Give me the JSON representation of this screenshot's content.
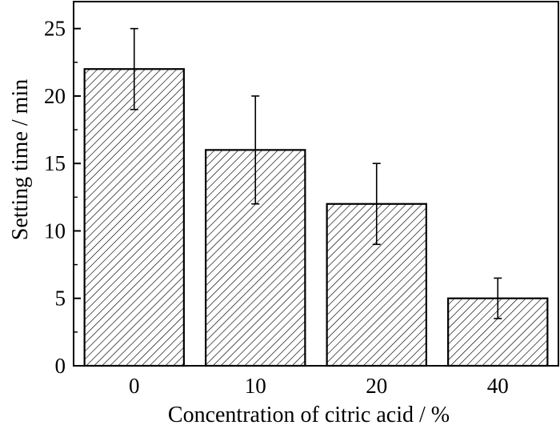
{
  "chart_data": {
    "type": "bar",
    "title": "",
    "xlabel": "Concentration of citric acid / %",
    "ylabel": "Setting time / min",
    "categories": [
      "0",
      "10",
      "20",
      "40"
    ],
    "values": [
      22,
      16,
      12,
      5
    ],
    "error_low": [
      19,
      12,
      9,
      3.5
    ],
    "error_high": [
      25,
      20,
      15,
      6.5
    ],
    "ylim": [
      0,
      27
    ],
    "yticks": [
      0,
      5,
      10,
      15,
      20,
      25
    ],
    "ytick_labels": [
      "0",
      "5",
      "10",
      "15",
      "20",
      "25"
    ],
    "bar_fill": "hatched",
    "colors": {
      "bar_edge": "#000000",
      "hatch": "#000000",
      "background": "#ffffff"
    },
    "grid": false,
    "legend": "none"
  }
}
